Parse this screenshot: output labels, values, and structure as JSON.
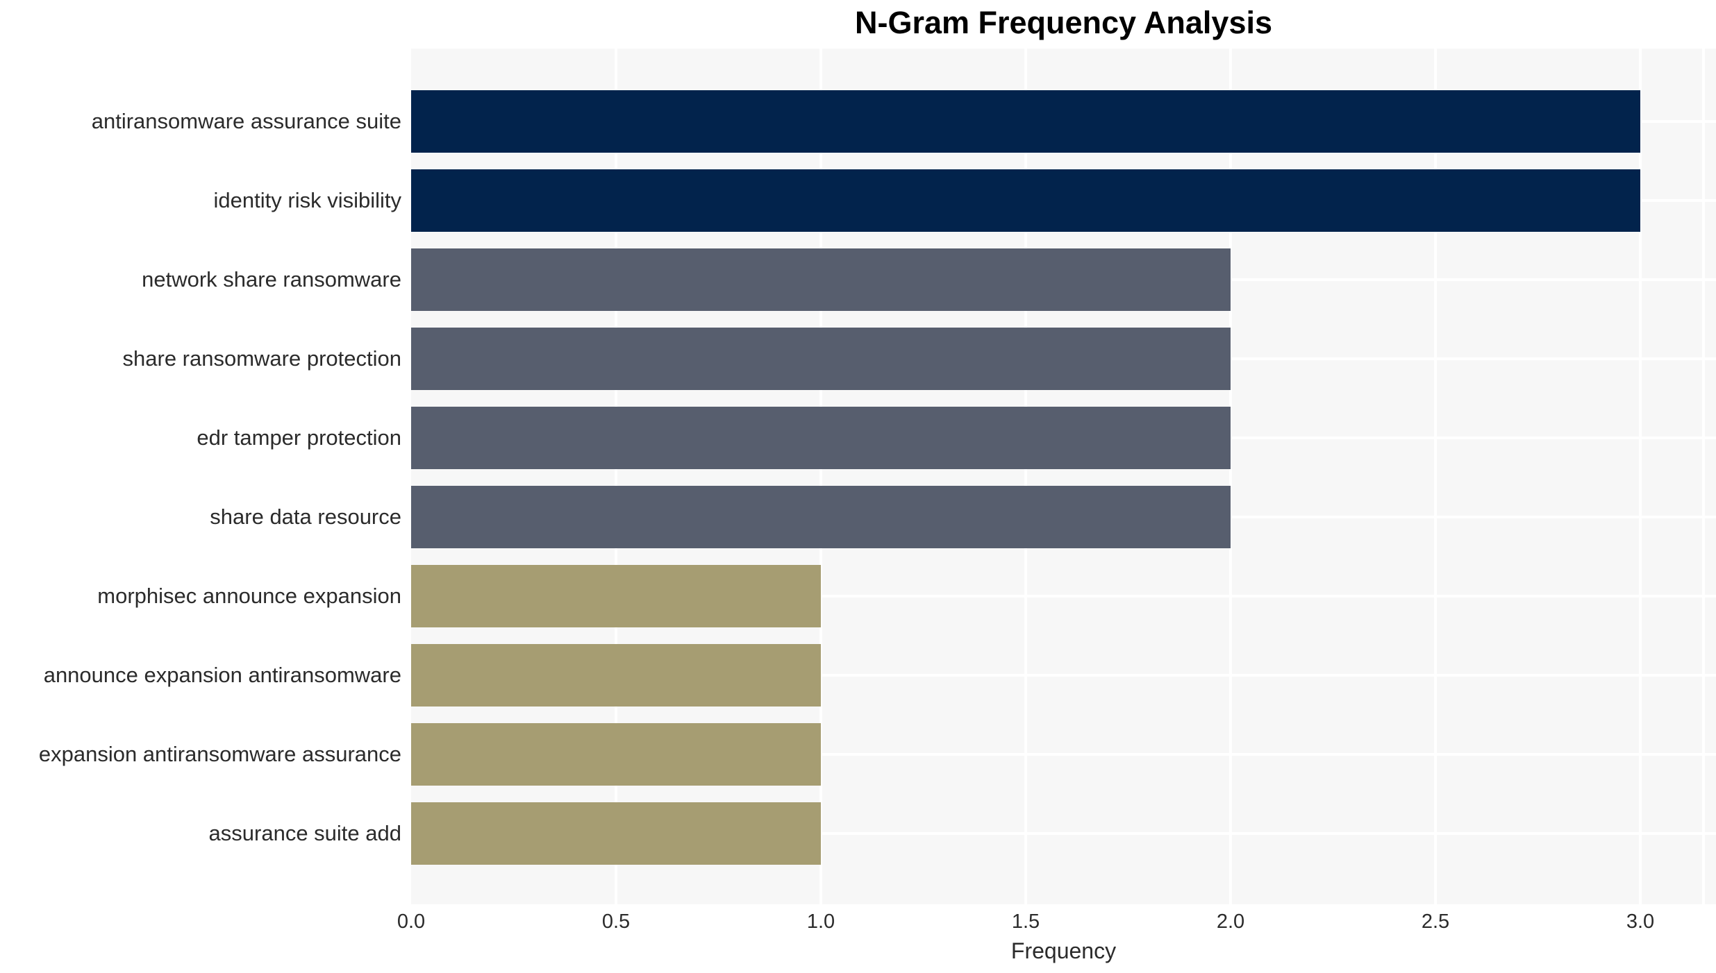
{
  "chart_data": {
    "type": "bar",
    "orientation": "horizontal",
    "title": "N-Gram Frequency Analysis",
    "xlabel": "Frequency",
    "ylabel": "",
    "categories": [
      "antiransomware assurance suite",
      "identity risk visibility",
      "network share ransomware",
      "share ransomware protection",
      "edr tamper protection",
      "share data resource",
      "morphisec announce expansion",
      "announce expansion antiransomware",
      "expansion antiransomware assurance",
      "assurance suite add"
    ],
    "values": [
      3.0,
      3.0,
      2.0,
      2.0,
      2.0,
      2.0,
      1.0,
      1.0,
      1.0,
      1.0
    ],
    "bar_colors": [
      "#02234c",
      "#02234c",
      "#575e6e",
      "#575e6e",
      "#575e6e",
      "#575e6e",
      "#a69d72",
      "#a69d72",
      "#a69d72",
      "#a69d72"
    ],
    "color_legend": {
      "frequency_3": "#02234c",
      "frequency_2": "#575e6e",
      "frequency_1": "#a69d72"
    },
    "xticks": {
      "values": [
        0,
        0.5,
        1.0,
        1.5,
        2.0,
        2.5,
        3.0
      ],
      "labels": [
        "0.0",
        "0.5",
        "1.0",
        "1.5",
        "2.0",
        "2.5",
        "3.0"
      ]
    },
    "xlim": [
      0,
      3.18
    ],
    "grid": "white major gridlines (vertical at ticks, horizontal at category centers) on light gray panel",
    "legend": "none",
    "style": {
      "figure_bg": "#ffffff",
      "panel_bg": "#f7f7f7",
      "grid_color": "#ffffff",
      "text_color": "#2b2b2b",
      "title_color": "#000000"
    }
  }
}
